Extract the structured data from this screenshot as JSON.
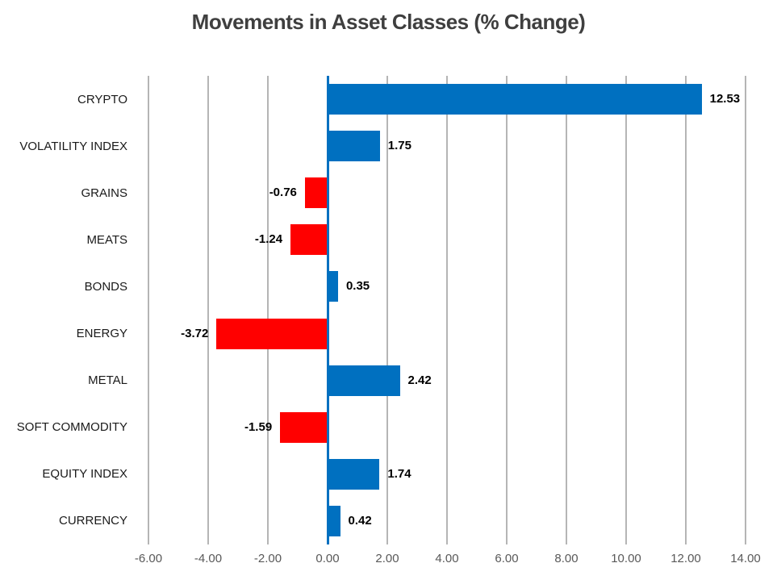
{
  "title": "Movements in Asset Classes (% Change)",
  "chart_data": {
    "type": "bar",
    "orientation": "horizontal",
    "title": "Movements in Asset Classes (% Change)",
    "categories": [
      "CRYPTO",
      "VOLATILITY INDEX",
      "GRAINS",
      "MEATS",
      "BONDS",
      "ENERGY",
      "METAL",
      "SOFT COMMODITY",
      "EQUITY INDEX",
      "CURRENCY"
    ],
    "values": [
      12.53,
      1.75,
      -0.76,
      -1.24,
      0.35,
      -3.72,
      2.42,
      -1.59,
      1.74,
      0.42
    ],
    "value_labels": [
      "12.53",
      "1.75",
      "-0.76",
      "-1.24",
      "0.35",
      "-3.72",
      "2.42",
      "-1.59",
      "1.74",
      "0.42"
    ],
    "xlabel": "",
    "ylabel": "",
    "xlim": [
      -6,
      14
    ],
    "x_ticks": [
      -6,
      -4,
      -2,
      0,
      2,
      4,
      6,
      8,
      10,
      12,
      14
    ],
    "x_tick_labels": [
      "-6.00",
      "-4.00",
      "-2.00",
      "0.00",
      "2.00",
      "4.00",
      "6.00",
      "8.00",
      "10.00",
      "12.00",
      "14.00"
    ],
    "grid": "vertical-on",
    "legend": "none",
    "colors": {
      "positive_bar": "#0070C0",
      "negative_bar": "#FF0000",
      "zero_axis_line": "#0070C0",
      "gridline": "#B5B5B5",
      "tick_label": "#595959",
      "category_label": "#1A1A1A",
      "value_label": "#000000",
      "title": "#3F3F3F",
      "background": "#FFFFFF"
    }
  }
}
